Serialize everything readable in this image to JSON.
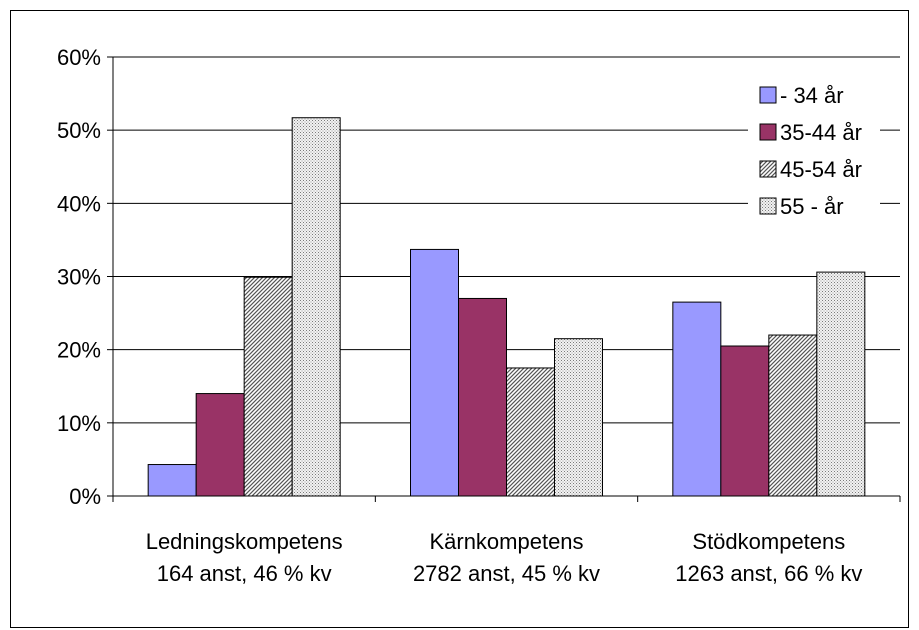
{
  "chart_data": {
    "type": "bar",
    "title": "",
    "xlabel": "",
    "ylabel": "",
    "ylim": [
      0,
      60
    ],
    "y_ticks": [
      "0%",
      "10%",
      "20%",
      "30%",
      "40%",
      "50%",
      "60%"
    ],
    "y_tick_values": [
      0,
      10,
      20,
      30,
      40,
      50,
      60
    ],
    "grid": true,
    "legend_position": "top-right",
    "categories": [
      {
        "line1": "Ledningskompetens",
        "line2": "164 anst, 46 % kv"
      },
      {
        "line1": "Kärnkompetens",
        "line2": "2782 anst, 45 % kv"
      },
      {
        "line1": "Stödkompetens",
        "line2": "1263 anst, 66 % kv"
      }
    ],
    "series": [
      {
        "name": "- 34 år",
        "values": [
          4.3,
          33.7,
          26.5
        ],
        "color": "#9999ff",
        "fill": "solid"
      },
      {
        "name": "35-44 år",
        "values": [
          14.0,
          27.0,
          20.5
        ],
        "color": "#993366",
        "fill": "solid"
      },
      {
        "name": "45-54 år",
        "values": [
          29.9,
          17.5,
          22.0
        ],
        "color": "#bfbfbf",
        "fill": "diagonal"
      },
      {
        "name": "55 - år",
        "values": [
          51.7,
          21.5,
          30.6
        ],
        "color": "#d9d9d9",
        "fill": "dots"
      }
    ]
  }
}
